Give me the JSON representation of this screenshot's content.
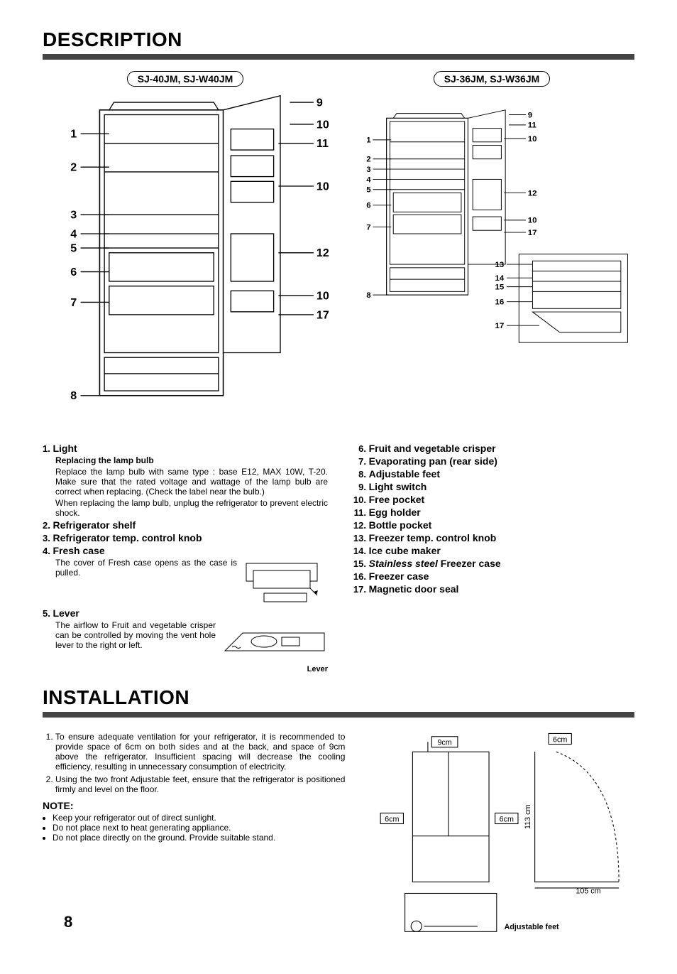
{
  "page_number": "8",
  "sections": {
    "description_title": "DESCRIPTION",
    "installation_title": "INSTALLATION"
  },
  "models": {
    "left": "SJ-40JM, SJ-W40JM",
    "right": "SJ-36JM, SJ-W36JM"
  },
  "diagram_left": {
    "left_labels": [
      "1",
      "2",
      "3",
      "4",
      "5",
      "6",
      "7",
      "8"
    ],
    "right_labels": [
      "9",
      "10",
      "11",
      "10",
      "12",
      "10",
      "17"
    ]
  },
  "diagram_right": {
    "left_labels": [
      "1",
      "2",
      "3",
      "4",
      "5",
      "6",
      "7",
      "8"
    ],
    "right_labels": [
      "9",
      "11",
      "10",
      "12",
      "10",
      "17"
    ],
    "freezer_labels": [
      "13",
      "14",
      "15",
      "16",
      "17"
    ]
  },
  "legend_left": [
    {
      "n": "1",
      "t": "Light",
      "sub": "Replacing the lamp bulb",
      "body": "Replace the lamp bulb with same type : base E12, MAX 10W, T-20. Make sure that the rated voltage and wattage of the lamp bulb are correct when replacing. (Check the label near the bulb.)",
      "body2": "When replacing the lamp bulb, unplug the refrigerator to prevent electric shock."
    },
    {
      "n": "2",
      "t": "Refrigerator shelf"
    },
    {
      "n": "3",
      "t": "Refrigerator temp. control knob"
    },
    {
      "n": "4",
      "t": "Fresh case",
      "body": "The cover of Fresh case opens as the case is pulled."
    },
    {
      "n": "5",
      "t": "Lever",
      "body": "The airflow to Fruit and vegetable crisper can be controlled by moving the vent hole lever to the right or left."
    }
  ],
  "lever_caption": "Lever",
  "legend_right": [
    {
      "n": "6",
      "t": "Fruit and vegetable crisper"
    },
    {
      "n": "7",
      "t": "Evaporating pan (rear side)"
    },
    {
      "n": "8",
      "t": "Adjustable feet"
    },
    {
      "n": "9",
      "t": "Light switch"
    },
    {
      "n": "10",
      "t": "Free pocket"
    },
    {
      "n": "11",
      "t": "Egg holder"
    },
    {
      "n": "12",
      "t": "Bottle pocket"
    },
    {
      "n": "13",
      "t": "Freezer temp. control knob"
    },
    {
      "n": "14",
      "t": "Ice cube maker"
    },
    {
      "n": "15",
      "t_html": "<i>Stainless steel</i> Freezer case"
    },
    {
      "n": "16",
      "t": "Freezer case"
    },
    {
      "n": "17",
      "t": "Magnetic door seal"
    }
  ],
  "installation": {
    "steps": [
      "To ensure adequate ventilation for your refrigerator, it is recommended to provide space of 6cm on both sides and at the back, and space of 9cm above the refrigerator. Insufficient spacing will decrease the cooling efficiency, resulting in unnecessary consumption of electricity.",
      "Using the two front Adjustable feet, ensure that the refrigerator is positioned firmly and level on the floor."
    ],
    "note_title": "NOTE:",
    "notes": [
      "Keep your refrigerator out of direct sunlight.",
      "Do not place next to heat generating appliance.",
      "Do not place directly on the ground. Provide suitable stand."
    ],
    "dims": {
      "top": "9cm",
      "side": "6cm",
      "back": "6cm",
      "door_swing": "105 cm",
      "door_height": "113 cm"
    },
    "feet_caption": "Adjustable feet"
  },
  "colors": {
    "bar": "#444",
    "line": "#000"
  }
}
